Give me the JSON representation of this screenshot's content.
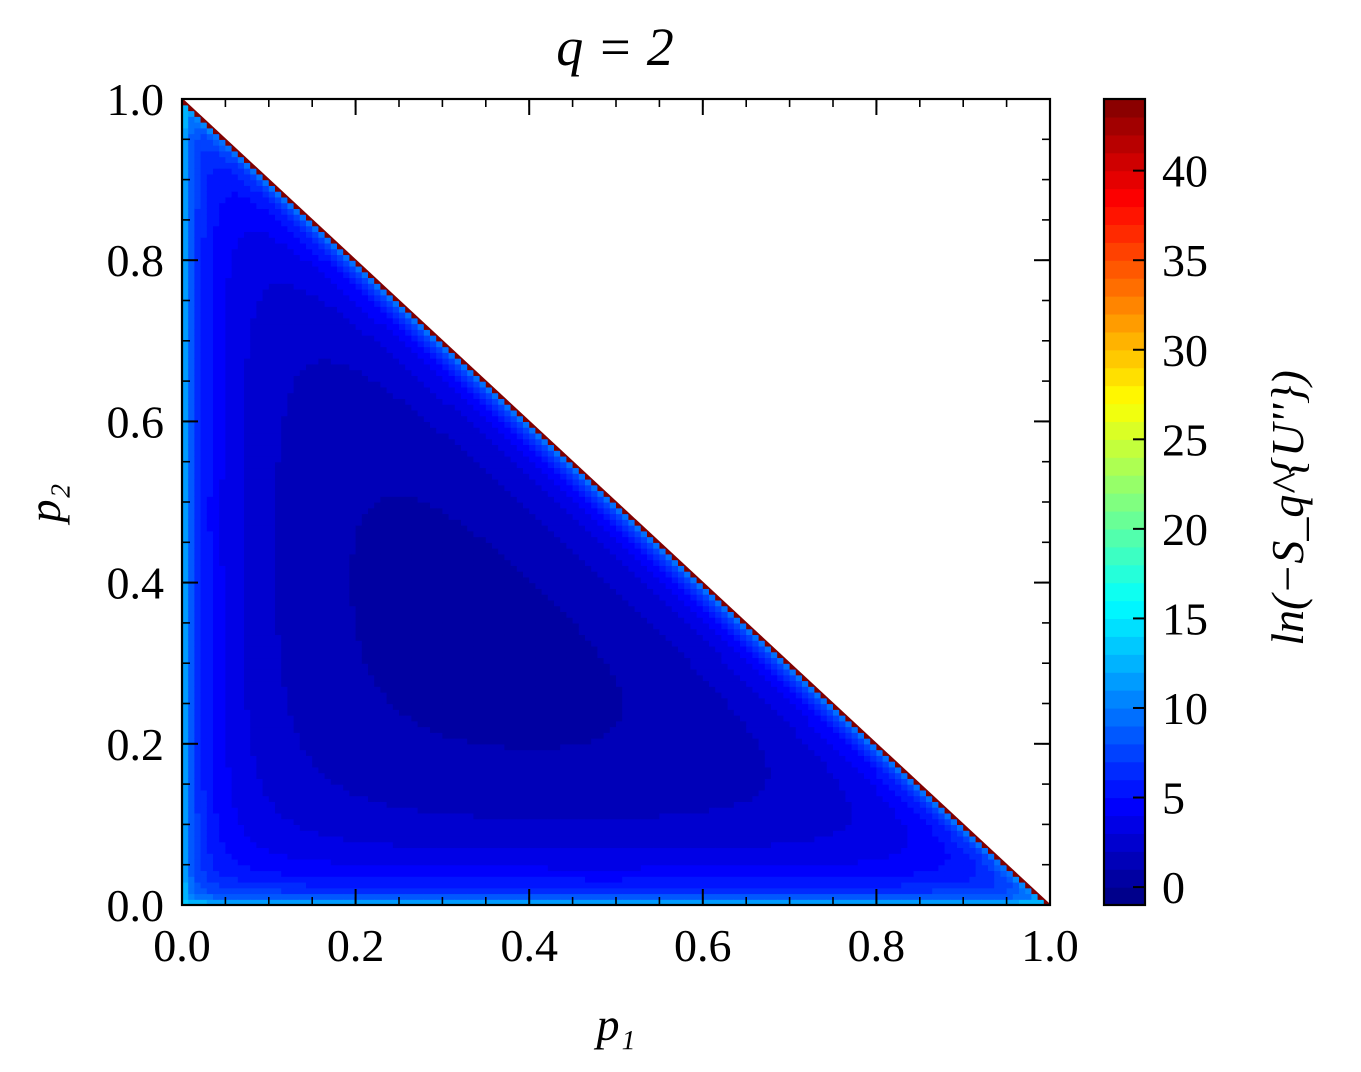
{
  "chart_data": {
    "type": "heatmap",
    "title": "q = 2",
    "xlabel": "p₁",
    "ylabel": "p₂",
    "colorbar_label": "ln(−S_q^{U''})",
    "xlim": [
      0.0,
      1.0
    ],
    "ylim": [
      0.0,
      1.0
    ],
    "x_ticks": [
      "0.0",
      "0.2",
      "0.4",
      "0.6",
      "0.8",
      "1.0"
    ],
    "y_ticks": [
      "0.0",
      "0.2",
      "0.4",
      "0.6",
      "0.8",
      "1.0"
    ],
    "colorbar_range": [
      -1,
      44
    ],
    "colorbar_ticks": [
      "0",
      "5",
      "10",
      "15",
      "20",
      "25",
      "30",
      "35",
      "40"
    ],
    "colormap": "jet",
    "domain": "p1 + p2 <= 1",
    "minimum_location": {
      "p1": 0.28,
      "p2": 0.27
    },
    "contour_levels": [
      0,
      1,
      2,
      3,
      4,
      5,
      6,
      7,
      8,
      9,
      10,
      11,
      12,
      13,
      14,
      15,
      16,
      17,
      18,
      19,
      20,
      21,
      22,
      23,
      24,
      25,
      26,
      27,
      28,
      29,
      30,
      31,
      32,
      33,
      34,
      35,
      36,
      37,
      38,
      39,
      40,
      41,
      42,
      43,
      44
    ],
    "grid": false
  }
}
